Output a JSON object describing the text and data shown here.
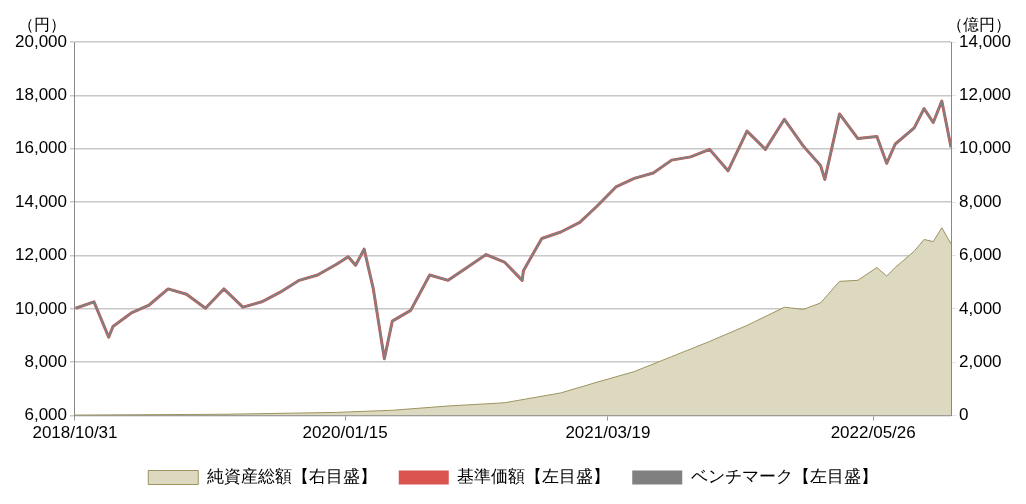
{
  "chart_data": {
    "type": "line",
    "ylabel": "（円）",
    "y2label": "（億円）",
    "xlim": [
      "2018-10-31",
      "2022-09-30"
    ],
    "xticks": [
      {
        "value": "2018-10-31",
        "label": "2018/10/31"
      },
      {
        "value": "2020-01-15",
        "label": "2020/01/15"
      },
      {
        "value": "2021-03-19",
        "label": "2021/03/19"
      },
      {
        "value": "2022-05-26",
        "label": "2022/05/26"
      }
    ],
    "ylim": [
      6000,
      20000
    ],
    "yticks": [
      {
        "value": 6000,
        "label": "6,000"
      },
      {
        "value": 8000,
        "label": "8,000"
      },
      {
        "value": 10000,
        "label": "10,000"
      },
      {
        "value": 12000,
        "label": "12,000"
      },
      {
        "value": 14000,
        "label": "14,000"
      },
      {
        "value": 16000,
        "label": "16,000"
      },
      {
        "value": 18000,
        "label": "18,000"
      },
      {
        "value": 20000,
        "label": "20,000"
      }
    ],
    "y2lim": [
      0,
      14000
    ],
    "y2ticks": [
      0,
      {
        "value": 2000,
        "label": "2,000"
      },
      {
        "value": 4000,
        "label": "4,000"
      },
      {
        "value": 6000,
        "label": "6,000"
      },
      {
        "value": 8000,
        "label": "8,000"
      },
      {
        "value": 10000,
        "label": "10,000"
      },
      {
        "value": 12000,
        "label": "12,000"
      },
      {
        "value": 14000,
        "label": "14,000"
      }
    ],
    "grid": "y",
    "legend": "bottom",
    "marker": "none",
    "line_style": "solid",
    "x": [
      "2018-11-01",
      "2018-12-01",
      "2018-12-25",
      "2019-01-01",
      "2019-02-01",
      "2019-03-01",
      "2019-04-01",
      "2019-05-01",
      "2019-06-01",
      "2019-07-01",
      "2019-08-01",
      "2019-09-01",
      "2019-10-01",
      "2019-11-01",
      "2019-12-01",
      "2020-01-01",
      "2020-01-20",
      "2020-02-01",
      "2020-02-15",
      "2020-03-01",
      "2020-03-19",
      "2020-04-01",
      "2020-05-01",
      "2020-06-01",
      "2020-07-01",
      "2020-08-01",
      "2020-09-01",
      "2020-10-01",
      "2020-10-30",
      "2020-11-01",
      "2020-12-01",
      "2021-01-01",
      "2021-02-01",
      "2021-03-01",
      "2021-04-01",
      "2021-05-01",
      "2021-06-01",
      "2021-07-01",
      "2021-08-01",
      "2021-09-01",
      "2021-10-01",
      "2021-11-01",
      "2021-12-01",
      "2022-01-01",
      "2022-02-01",
      "2022-03-01",
      "2022-03-08",
      "2022-04-01",
      "2022-05-01",
      "2022-06-01",
      "2022-06-17",
      "2022-07-01",
      "2022-08-01",
      "2022-08-17",
      "2022-09-01",
      "2022-09-15",
      "2022-09-30"
    ],
    "series": [
      {
        "name": "純資産総額【右目盛】",
        "type": "area",
        "axis": "y2",
        "color": "#9c9460",
        "x": [
          "2018-10-31",
          "2019-07-01",
          "2020-01-01",
          "2020-04-01",
          "2020-07-01",
          "2020-10-01",
          "2021-01-01",
          "2021-03-01",
          "2021-05-01",
          "2021-07-01",
          "2021-09-01",
          "2021-11-01",
          "2022-01-01",
          "2022-02-01",
          "2022-03-01",
          "2022-04-01",
          "2022-05-01",
          "2022-06-01",
          "2022-06-17",
          "2022-07-01",
          "2022-08-01",
          "2022-08-17",
          "2022-09-01",
          "2022-09-15",
          "2022-09-30"
        ],
        "values": [
          20,
          50,
          120,
          200,
          360,
          480,
          850,
          1250,
          1650,
          2210,
          2780,
          3380,
          4060,
          3980,
          4220,
          5030,
          5070,
          5550,
          5230,
          5550,
          6160,
          6600,
          6520,
          7040,
          6440
        ]
      },
      {
        "name": "基準価額【左目盛】",
        "color": "#d9534f",
        "values": [
          10023,
          10264,
          8937,
          9339,
          9862,
          10144,
          10747,
          10546,
          10023,
          10747,
          10063,
          10264,
          10626,
          11069,
          11270,
          11672,
          11954,
          11632,
          12236,
          10747,
          8132,
          9540,
          9943,
          11270,
          11069,
          11552,
          12035,
          11753,
          11069,
          11431,
          12638,
          12879,
          13241,
          13845,
          14569,
          14891,
          15092,
          15574,
          15696,
          15977,
          15172,
          16661,
          15977,
          17103,
          16098,
          15373,
          14851,
          17305,
          16380,
          16460,
          15454,
          16178,
          16782,
          17506,
          16983,
          17787,
          16058
        ]
      },
      {
        "name": "ベンチマーク【左目盛】",
        "color": "#808080",
        "values": [
          10023,
          10264,
          8937,
          9339,
          9862,
          10144,
          10747,
          10546,
          10023,
          10747,
          10063,
          10264,
          10626,
          11069,
          11270,
          11672,
          11954,
          11632,
          12236,
          10747,
          8132,
          9540,
          9943,
          11270,
          11069,
          11552,
          12035,
          11753,
          11069,
          11431,
          12638,
          12879,
          13241,
          13845,
          14569,
          14891,
          15092,
          15574,
          15696,
          15977,
          15172,
          16661,
          15977,
          17103,
          16098,
          15373,
          14851,
          17305,
          16380,
          16460,
          15454,
          16178,
          16782,
          17506,
          16983,
          17787,
          16058
        ]
      }
    ]
  }
}
